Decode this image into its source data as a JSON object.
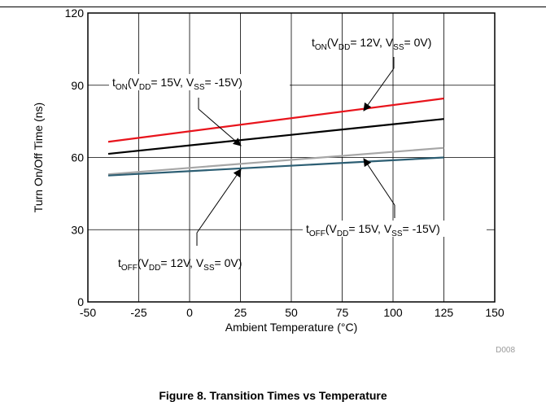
{
  "chart_data": {
    "type": "line",
    "xlabel": "Ambient Temperature (°C)",
    "ylabel": "Turn On/Off Time (ns)",
    "xlim": [
      -50,
      150
    ],
    "ylim": [
      0,
      120
    ],
    "x_ticks": [
      "-50",
      "-25",
      "0",
      "25",
      "50",
      "75",
      "100",
      "125",
      "150"
    ],
    "y_ticks": [
      "0",
      "30",
      "60",
      "90",
      "120"
    ],
    "grid": true,
    "series": [
      {
        "name": "tON(VDD= 12V, VSS= 0V)",
        "color": "#e8141c",
        "x": [
          -40,
          125
        ],
        "y": [
          66.5,
          84.5
        ]
      },
      {
        "name": "tON(VDD= 15V, VSS= -15V)",
        "color": "#000000",
        "x": [
          -40,
          125
        ],
        "y": [
          61.5,
          76
        ]
      },
      {
        "name": "tOFF(VDD= 15V, VSS= -15V)",
        "color": "#a6a6a6",
        "x": [
          -40,
          125
        ],
        "y": [
          53,
          64
        ]
      },
      {
        "name": "tOFF(VDD= 12V, VSS= 0V)",
        "color": "#2c5e73",
        "x": [
          -40,
          125
        ],
        "y": [
          52.5,
          60
        ]
      }
    ],
    "annotations": [
      {
        "main": "t",
        "sub1": "ON",
        "mid1": "(V",
        "sub2": "DD",
        "mid2": "= 12V, V",
        "sub3": "SS",
        "tail": "= 0V)"
      },
      {
        "main": "t",
        "sub1": "ON",
        "mid1": "(V",
        "sub2": "DD",
        "mid2": "= 15V, V",
        "sub3": "SS",
        "tail": "= -15V)"
      },
      {
        "main": "t",
        "sub1": "OFF",
        "mid1": "(V",
        "sub2": "DD",
        "mid2": "= 15V, V",
        "sub3": "SS",
        "tail": "= -15V)"
      },
      {
        "main": "t",
        "sub1": "OFF",
        "mid1": "(V",
        "sub2": "DD",
        "mid2": "= 12V, V",
        "sub3": "SS",
        "tail": "= 0V)"
      }
    ]
  },
  "footer_code": "D008",
  "caption": "Figure 8. Transition Times vs Temperature"
}
